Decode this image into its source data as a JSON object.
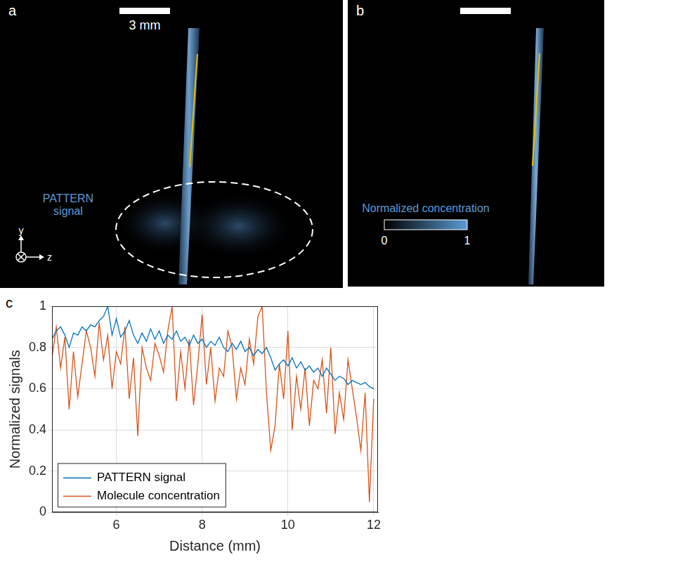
{
  "panel_a": {
    "panel_label": "a",
    "scale_bar": "3 mm",
    "label": "PATTERN signal",
    "axis_labels": [
      "y",
      "z"
    ]
  },
  "panel_b": {
    "panel_label": "b",
    "colorbar": {
      "title": "Normalized concentration",
      "ticks": [
        0,
        1
      ]
    }
  },
  "chart_data": {
    "panel_label": "c",
    "type": "line",
    "x_label": "Distance (mm)",
    "y_label": "Normalized signals",
    "x": [
      4.5,
      4.6,
      4.7,
      4.8,
      4.9,
      5.0,
      5.1,
      5.2,
      5.3,
      5.4,
      5.5,
      5.6,
      5.7,
      5.8,
      5.9,
      6.0,
      6.1,
      6.2,
      6.3,
      6.4,
      6.5,
      6.6,
      6.7,
      6.8,
      6.9,
      7.0,
      7.1,
      7.2,
      7.3,
      7.4,
      7.5,
      7.6,
      7.7,
      7.8,
      7.9,
      8.0,
      8.1,
      8.2,
      8.3,
      8.4,
      8.5,
      8.6,
      8.7,
      8.8,
      8.9,
      9.0,
      9.1,
      9.2,
      9.3,
      9.4,
      9.5,
      9.6,
      9.7,
      9.8,
      9.9,
      10.0,
      10.1,
      10.2,
      10.3,
      10.4,
      10.5,
      10.6,
      10.7,
      10.8,
      10.9,
      11.0,
      11.1,
      11.2,
      11.3,
      11.4,
      11.5,
      11.6,
      11.7,
      11.8,
      11.9,
      12.0
    ],
    "series": [
      {
        "name": "PATTERN signal",
        "color": "#0072bd",
        "values": [
          0.84,
          0.88,
          0.9,
          0.86,
          0.8,
          0.87,
          0.86,
          0.9,
          0.88,
          0.91,
          0.9,
          0.93,
          0.95,
          1.0,
          0.86,
          0.94,
          0.85,
          0.88,
          0.93,
          0.86,
          0.82,
          0.87,
          0.83,
          0.89,
          0.84,
          0.88,
          0.82,
          0.86,
          0.84,
          0.88,
          0.83,
          0.85,
          0.81,
          0.86,
          0.82,
          0.84,
          0.8,
          0.83,
          0.81,
          0.85,
          0.8,
          0.78,
          0.82,
          0.79,
          0.83,
          0.78,
          0.8,
          0.76,
          0.79,
          0.77,
          0.8,
          0.75,
          0.69,
          0.72,
          0.74,
          0.71,
          0.75,
          0.7,
          0.73,
          0.69,
          0.71,
          0.68,
          0.7,
          0.66,
          0.7,
          0.67,
          0.64,
          0.66,
          0.65,
          0.62,
          0.64,
          0.63,
          0.62,
          0.63,
          0.61,
          0.6
        ]
      },
      {
        "name": "Molecule concentration",
        "color": "#d95319",
        "values": [
          0.75,
          0.9,
          0.7,
          0.85,
          0.5,
          0.78,
          0.56,
          0.72,
          0.88,
          0.8,
          0.66,
          0.92,
          0.74,
          0.86,
          0.6,
          0.78,
          0.72,
          0.9,
          0.55,
          0.75,
          0.37,
          0.8,
          0.7,
          0.64,
          0.82,
          0.76,
          0.68,
          0.88,
          1.0,
          0.54,
          0.78,
          0.6,
          0.84,
          0.52,
          0.72,
          0.96,
          0.62,
          0.8,
          0.54,
          0.7,
          0.66,
          0.88,
          0.8,
          0.55,
          0.7,
          0.62,
          0.84,
          0.72,
          0.95,
          1.0,
          0.58,
          0.3,
          0.42,
          0.72,
          0.55,
          0.88,
          0.4,
          0.66,
          0.5,
          0.7,
          0.42,
          0.64,
          0.6,
          0.74,
          0.48,
          0.8,
          0.38,
          0.58,
          0.45,
          0.74,
          0.6,
          0.46,
          0.3,
          0.58,
          0.05,
          0.55
        ]
      }
    ],
    "xlim": [
      4.5,
      12.1
    ],
    "xticks": [
      6,
      8,
      10,
      12
    ],
    "ylim": [
      0,
      1
    ],
    "yticks": [
      0,
      0.2,
      0.4,
      0.6,
      0.8,
      1
    ],
    "grid": true,
    "legend": "lower left"
  }
}
